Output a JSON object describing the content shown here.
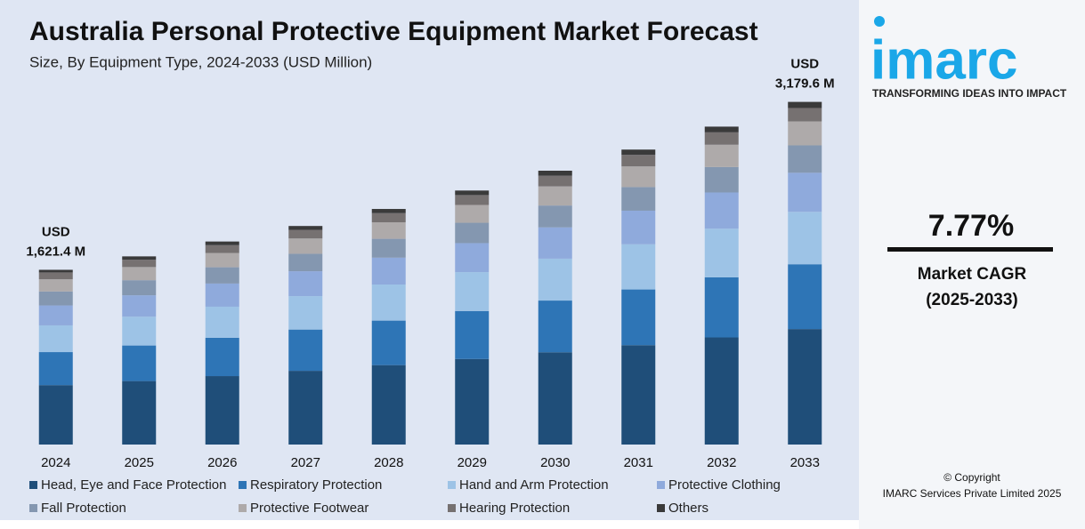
{
  "chart_data": {
    "type": "stacked-bar",
    "title": "Australia Personal Protective Equipment Market Forecast",
    "subtitle": "Size, By Equipment Type, 2024-2033 (USD Million)",
    "categories": [
      "2024",
      "2025",
      "2026",
      "2027",
      "2028",
      "2029",
      "2030",
      "2031",
      "2032",
      "2033"
    ],
    "series": [
      {
        "name": "Head, Eye and Face Protection",
        "color": "#1f4e79",
        "values": [
          551.3,
          589,
          635,
          684,
          737,
          794,
          856,
          922,
          994,
          1071.5
        ]
      },
      {
        "name": "Respiratory Protection",
        "color": "#2e75b6",
        "values": [
          306.4,
          330,
          356,
          383,
          413,
          445,
          480,
          517,
          558,
          601.4
        ]
      },
      {
        "name": "Hand and Arm Protection",
        "color": "#9dc3e6",
        "values": [
          248.1,
          267,
          288,
          310,
          335,
          361,
          389,
          419,
          451,
          486.5
        ]
      },
      {
        "name": "Protective Clothing",
        "color": "#8faadc",
        "values": [
          184.8,
          199,
          215,
          231,
          249,
          269,
          290,
          312,
          336,
          362.5
        ]
      },
      {
        "name": "Fall Protection",
        "color": "#8497b0",
        "values": [
          129.7,
          140,
          151,
          162,
          175,
          189,
          203,
          219,
          236,
          254.4
        ]
      },
      {
        "name": "Protective Footwear",
        "color": "#aeaaaa",
        "values": [
          113.5,
          122,
          132,
          142,
          153,
          165,
          178,
          192,
          207,
          222.6
        ]
      },
      {
        "name": "Hearing Protection",
        "color": "#767171",
        "values": [
          63.2,
          68,
          73,
          79,
          85,
          92,
          99,
          107,
          115,
          124.0
        ]
      },
      {
        "name": "Others",
        "color": "#3a3a3a",
        "values": [
          24.4,
          31,
          34,
          37,
          39,
          42,
          46,
          49,
          53,
          56.7
        ]
      }
    ],
    "total_labels": [
      {
        "prefix": "USD",
        "value": 1621.4,
        "label": "1,621.4 M"
      },
      null,
      null,
      null,
      null,
      null,
      null,
      null,
      null,
      {
        "prefix": "USD",
        "value": 3179.6,
        "label": "3,179.6 M"
      }
    ],
    "ylim": [
      0,
      3300
    ],
    "grid": false
  },
  "sidebar": {
    "logo": "imarc",
    "tagline": "TRANSFORMING IDEAS INTO IMPACT",
    "cagr": "7.77%",
    "cagr_label": "Market CAGR",
    "cagr_period": "(2025-2033)",
    "copyright": "© Copyright",
    "company": "IMARC Services Private Limited 2025"
  }
}
